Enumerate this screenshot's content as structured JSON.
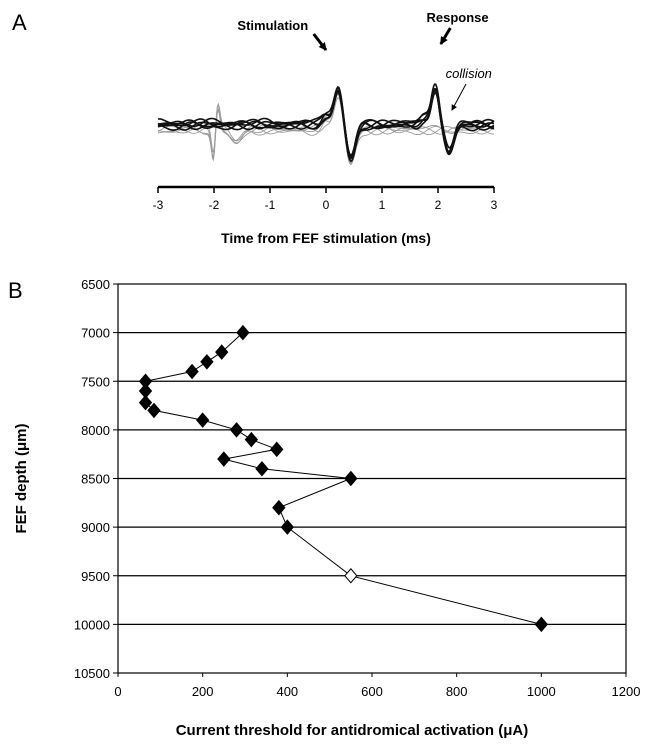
{
  "chart_data": [
    {
      "panel": "A",
      "type": "line",
      "xlabel": "Time from FEF stimulation (ms)",
      "ylabel": "",
      "xlim": [
        -3,
        3
      ],
      "xticks": [
        "-3",
        "-2",
        "-1",
        "0",
        "1",
        "2",
        "3"
      ],
      "grid": false,
      "annotations": [
        {
          "text": "Stimulation",
          "style": "bold",
          "points_to_x": 0.2
        },
        {
          "text": "Response",
          "style": "bold",
          "points_to_x": 1.95
        },
        {
          "text": "collision",
          "style": "italic",
          "points_to_x": 2.3
        }
      ]
    },
    {
      "panel": "B",
      "type": "scatter",
      "xlabel": "Current threshold for antidromical activation (μA)",
      "ylabel": "FEF depth (μm)",
      "xlim": [
        0,
        1200
      ],
      "ylim": [
        6500,
        10500
      ],
      "y_inverted": true,
      "xticks": [
        "0",
        "200",
        "400",
        "600",
        "800",
        "1000",
        "1200"
      ],
      "yticks": [
        "6500",
        "7000",
        "7500",
        "8000",
        "8500",
        "9000",
        "9500",
        "10000",
        "10500"
      ],
      "grid": true,
      "connected": true,
      "points": [
        {
          "x": 295,
          "y": 7000,
          "filled": true
        },
        {
          "x": 245,
          "y": 7200,
          "filled": true
        },
        {
          "x": 210,
          "y": 7300,
          "filled": true
        },
        {
          "x": 175,
          "y": 7400,
          "filled": true
        },
        {
          "x": 65,
          "y": 7500,
          "filled": true
        },
        {
          "x": 65,
          "y": 7600,
          "filled": true
        },
        {
          "x": 65,
          "y": 7720,
          "filled": true
        },
        {
          "x": 85,
          "y": 7800,
          "filled": true
        },
        {
          "x": 200,
          "y": 7900,
          "filled": true
        },
        {
          "x": 280,
          "y": 8000,
          "filled": true
        },
        {
          "x": 315,
          "y": 8100,
          "filled": true
        },
        {
          "x": 375,
          "y": 8200,
          "filled": true
        },
        {
          "x": 250,
          "y": 8300,
          "filled": true
        },
        {
          "x": 340,
          "y": 8400,
          "filled": true
        },
        {
          "x": 550,
          "y": 8500,
          "filled": true
        },
        {
          "x": 380,
          "y": 8800,
          "filled": true
        },
        {
          "x": 400,
          "y": 9000,
          "filled": true
        },
        {
          "x": 550,
          "y": 9500,
          "filled": false
        },
        {
          "x": 1000,
          "y": 10000,
          "filled": true
        }
      ]
    }
  ],
  "labels": {
    "panel_a": "A",
    "panel_b": "B"
  }
}
